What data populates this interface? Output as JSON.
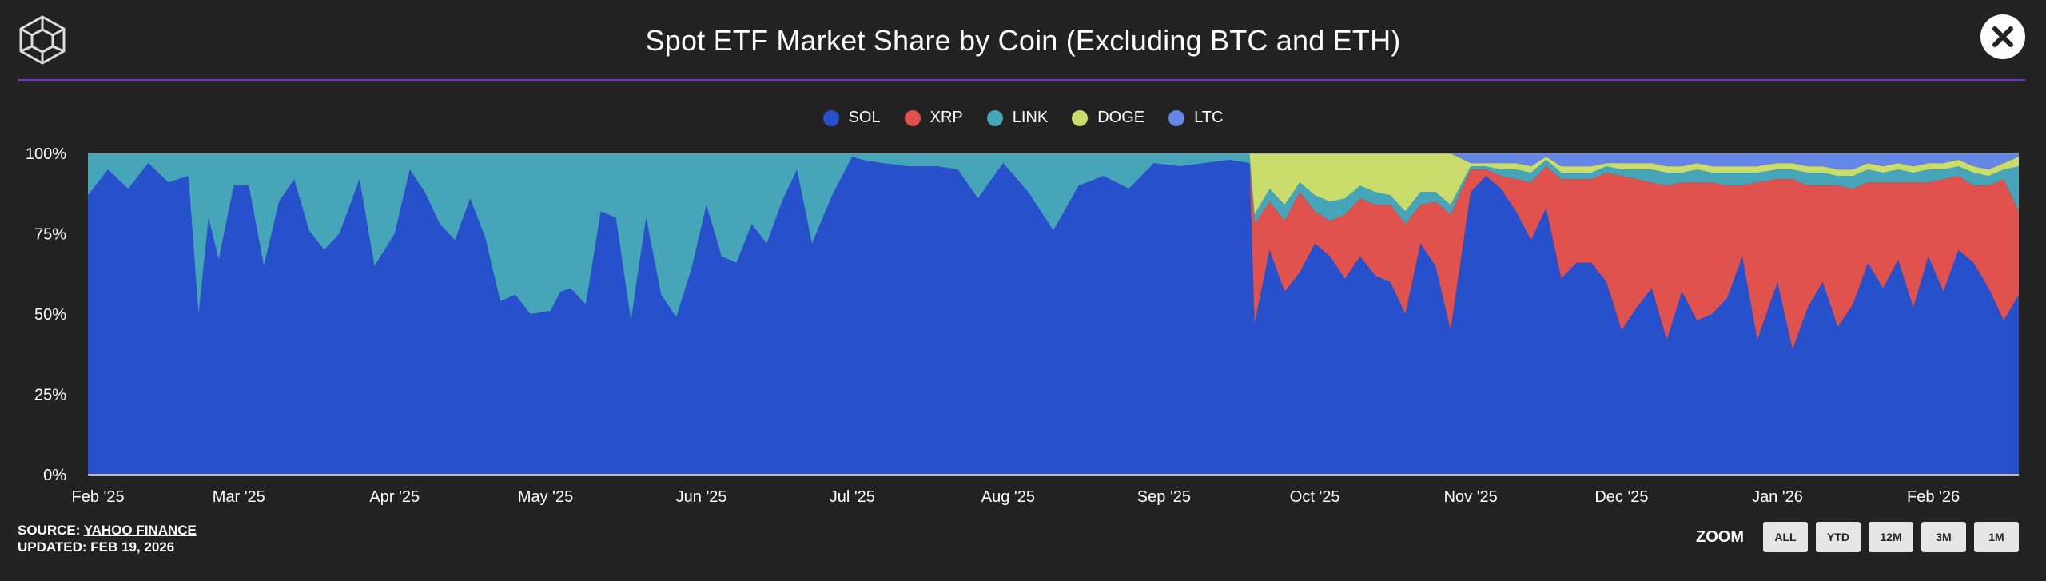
{
  "title": "Spot ETF Market Share by Coin (Excluding BTC and ETH)",
  "icons": {
    "logo": "cube-logo-icon",
    "close": "close-icon"
  },
  "colors": {
    "background": "#222222",
    "divider": "#7b2fd6"
  },
  "footer": {
    "source_prefix": "SOURCE:",
    "source_link": "YAHOO FINANCE",
    "updated": "UPDATED: FEB 19, 2026"
  },
  "zoom": {
    "label": "ZOOM",
    "buttons": [
      "ALL",
      "YTD",
      "12M",
      "3M",
      "1M"
    ]
  },
  "chart_data": {
    "type": "area",
    "stacked": true,
    "normalized": true,
    "ylim": [
      0,
      100
    ],
    "ytick_labels": [
      "0%",
      "25%",
      "50%",
      "75%",
      "100%"
    ],
    "xtick_labels": [
      "Feb '25",
      "Mar '25",
      "Apr '25",
      "May '25",
      "Jun '25",
      "Jul '25",
      "Aug '25",
      "Sep '25",
      "Oct '25",
      "Nov '25",
      "Dec '25",
      "Jan '26",
      "Feb '26"
    ],
    "x_range": [
      "2025-01-30",
      "2026-02-18"
    ],
    "legend_position": "top-center",
    "series_colors": {
      "SOL": "#2650cc",
      "XRP": "#e0524e",
      "LINK": "#46a5b9",
      "DOGE": "#c9dc6c",
      "LTC": "#6486e6"
    },
    "x": [
      "2025-01-30",
      "2025-02-03",
      "2025-02-07",
      "2025-02-11",
      "2025-02-15",
      "2025-02-19",
      "2025-02-21",
      "2025-02-23",
      "2025-02-25",
      "2025-02-28",
      "2025-03-03",
      "2025-03-06",
      "2025-03-09",
      "2025-03-12",
      "2025-03-15",
      "2025-03-18",
      "2025-03-21",
      "2025-03-25",
      "2025-03-28",
      "2025-04-01",
      "2025-04-04",
      "2025-04-07",
      "2025-04-10",
      "2025-04-13",
      "2025-04-16",
      "2025-04-19",
      "2025-04-22",
      "2025-04-25",
      "2025-04-28",
      "2025-05-02",
      "2025-05-04",
      "2025-05-06",
      "2025-05-09",
      "2025-05-12",
      "2025-05-15",
      "2025-05-18",
      "2025-05-21",
      "2025-05-24",
      "2025-05-27",
      "2025-05-30",
      "2025-06-02",
      "2025-06-05",
      "2025-06-08",
      "2025-06-11",
      "2025-06-14",
      "2025-06-17",
      "2025-06-20",
      "2025-06-23",
      "2025-06-27",
      "2025-07-01",
      "2025-07-03",
      "2025-07-07",
      "2025-07-12",
      "2025-07-18",
      "2025-07-22",
      "2025-07-26",
      "2025-07-31",
      "2025-08-05",
      "2025-08-10",
      "2025-08-15",
      "2025-08-20",
      "2025-08-25",
      "2025-08-30",
      "2025-09-04",
      "2025-09-09",
      "2025-09-14",
      "2025-09-18",
      "2025-09-19",
      "2025-09-22",
      "2025-09-25",
      "2025-09-28",
      "2025-10-01",
      "2025-10-04",
      "2025-10-07",
      "2025-10-10",
      "2025-10-13",
      "2025-10-16",
      "2025-10-19",
      "2025-10-22",
      "2025-10-25",
      "2025-10-28",
      "2025-11-01",
      "2025-11-04",
      "2025-11-07",
      "2025-11-10",
      "2025-11-13",
      "2025-11-16",
      "2025-11-19",
      "2025-11-22",
      "2025-11-25",
      "2025-11-28",
      "2025-12-01",
      "2025-12-04",
      "2025-12-07",
      "2025-12-10",
      "2025-12-13",
      "2025-12-16",
      "2025-12-19",
      "2025-12-22",
      "2025-12-25",
      "2025-12-28",
      "2026-01-01",
      "2026-01-04",
      "2026-01-07",
      "2026-01-10",
      "2026-01-13",
      "2026-01-16",
      "2026-01-19",
      "2026-01-22",
      "2026-01-25",
      "2026-01-28",
      "2026-01-31",
      "2026-02-03",
      "2026-02-06",
      "2026-02-09",
      "2026-02-12",
      "2026-02-15",
      "2026-02-18"
    ],
    "series": [
      {
        "name": "SOL",
        "values": [
          87,
          95,
          89,
          97,
          91,
          93,
          50,
          80,
          67,
          90,
          90,
          65,
          85,
          92,
          76,
          70,
          75,
          92,
          65,
          75,
          95,
          88,
          78,
          73,
          86,
          74,
          54,
          56,
          50,
          51,
          57,
          58,
          53,
          82,
          80,
          48,
          80,
          56,
          49,
          64,
          84,
          68,
          66,
          78,
          72,
          85,
          95,
          72,
          87,
          99,
          98,
          97,
          96,
          96,
          95,
          86,
          97,
          88,
          76,
          90,
          93,
          89,
          97,
          96,
          97,
          98,
          97,
          47,
          70,
          57,
          63,
          72,
          68,
          61,
          68,
          62,
          60,
          50,
          72,
          65,
          45,
          88,
          93,
          89,
          82,
          73,
          83,
          61,
          66,
          66,
          60,
          45,
          52,
          58,
          42,
          57,
          48,
          50,
          55,
          68,
          42,
          60,
          39,
          52,
          60,
          46,
          53,
          66,
          58,
          67,
          52,
          68,
          57,
          70,
          66,
          58,
          48,
          56
        ]
      },
      {
        "name": "XRP",
        "values": [
          0,
          0,
          0,
          0,
          0,
          0,
          0,
          0,
          0,
          0,
          0,
          0,
          0,
          0,
          0,
          0,
          0,
          0,
          0,
          0,
          0,
          0,
          0,
          0,
          0,
          0,
          0,
          0,
          0,
          0,
          0,
          0,
          0,
          0,
          0,
          0,
          0,
          0,
          0,
          0,
          0,
          0,
          0,
          0,
          0,
          0,
          0,
          0,
          0,
          0,
          0,
          0,
          0,
          0,
          0,
          0,
          0,
          0,
          0,
          0,
          0,
          0,
          0,
          0,
          0,
          0,
          0,
          31,
          15,
          22,
          25,
          10,
          11,
          20,
          18,
          22,
          24,
          28,
          12,
          20,
          36,
          7,
          2,
          4,
          10,
          18,
          13,
          31,
          26,
          26,
          34,
          48,
          40,
          33,
          48,
          34,
          43,
          41,
          35,
          22,
          49,
          32,
          53,
          38,
          30,
          44,
          36,
          25,
          33,
          24,
          39,
          23,
          35,
          23,
          24,
          32,
          44,
          26
        ]
      },
      {
        "name": "LINK",
        "values": [
          13,
          5,
          11,
          3,
          9,
          7,
          50,
          20,
          33,
          10,
          10,
          35,
          15,
          8,
          24,
          30,
          25,
          8,
          35,
          25,
          5,
          12,
          22,
          27,
          14,
          26,
          46,
          44,
          50,
          49,
          43,
          42,
          47,
          18,
          20,
          52,
          20,
          44,
          51,
          36,
          16,
          32,
          34,
          22,
          28,
          15,
          5,
          28,
          13,
          1,
          2,
          3,
          4,
          4,
          5,
          14,
          3,
          12,
          24,
          10,
          7,
          11,
          3,
          4,
          3,
          2,
          3,
          3,
          4,
          5,
          3,
          5,
          6,
          5,
          4,
          4,
          3,
          4,
          4,
          3,
          3,
          1,
          1,
          2,
          3,
          3,
          2,
          2,
          2,
          2,
          2,
          2,
          3,
          4,
          4,
          3,
          4,
          3,
          4,
          4,
          3,
          3,
          3,
          4,
          4,
          3,
          4,
          4,
          3,
          4,
          3,
          4,
          3,
          3,
          4,
          3,
          3,
          14
        ]
      },
      {
        "name": "DOGE",
        "values": [
          0,
          0,
          0,
          0,
          0,
          0,
          0,
          0,
          0,
          0,
          0,
          0,
          0,
          0,
          0,
          0,
          0,
          0,
          0,
          0,
          0,
          0,
          0,
          0,
          0,
          0,
          0,
          0,
          0,
          0,
          0,
          0,
          0,
          0,
          0,
          0,
          0,
          0,
          0,
          0,
          0,
          0,
          0,
          0,
          0,
          0,
          0,
          0,
          0,
          0,
          0,
          0,
          0,
          0,
          0,
          0,
          0,
          0,
          0,
          0,
          0,
          0,
          0,
          0,
          0,
          0,
          0,
          19,
          11,
          16,
          9,
          13,
          15,
          14,
          10,
          12,
          13,
          18,
          12,
          12,
          16,
          1,
          1,
          2,
          2,
          2,
          1,
          2,
          2,
          2,
          1,
          2,
          2,
          2,
          2,
          2,
          2,
          2,
          2,
          2,
          2,
          2,
          2,
          2,
          2,
          2,
          2,
          2,
          2,
          2,
          2,
          2,
          2,
          2,
          2,
          2,
          2,
          3
        ]
      },
      {
        "name": "LTC",
        "values": [
          0,
          0,
          0,
          0,
          0,
          0,
          0,
          0,
          0,
          0,
          0,
          0,
          0,
          0,
          0,
          0,
          0,
          0,
          0,
          0,
          0,
          0,
          0,
          0,
          0,
          0,
          0,
          0,
          0,
          0,
          0,
          0,
          0,
          0,
          0,
          0,
          0,
          0,
          0,
          0,
          0,
          0,
          0,
          0,
          0,
          0,
          0,
          0,
          0,
          0,
          0,
          0,
          0,
          0,
          0,
          0,
          0,
          0,
          0,
          0,
          0,
          0,
          0,
          0,
          0,
          0,
          0,
          0,
          0,
          0,
          0,
          0,
          0,
          0,
          0,
          0,
          0,
          0,
          0,
          0,
          0,
          3,
          3,
          3,
          3,
          4,
          1,
          4,
          4,
          4,
          3,
          3,
          3,
          3,
          4,
          4,
          3,
          4,
          4,
          4,
          4,
          3,
          3,
          4,
          4,
          5,
          5,
          3,
          4,
          3,
          4,
          3,
          3,
          2,
          4,
          5,
          3,
          1
        ]
      }
    ]
  }
}
